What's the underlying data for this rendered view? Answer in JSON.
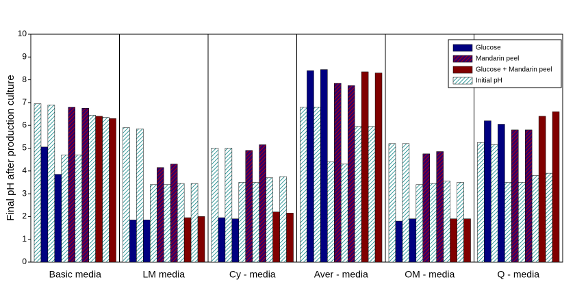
{
  "chart_data": {
    "type": "bar",
    "y_label": "Final pH after production culture",
    "categories": [
      "Basic media",
      "LM media",
      "Cy - media",
      "Aver - media",
      "OM - media",
      "Q - media"
    ],
    "bar_order": [
      "3.0",
      "0.0",
      "3.1",
      "0.1",
      "3.2",
      "1.0",
      "3.3",
      "1.1",
      "3.4",
      "2.0",
      "3.5",
      "2.1"
    ],
    "series": [
      {
        "name": "Glucose",
        "color": "#000080",
        "hatch": false,
        "values": [
          [
            5.05,
            3.85
          ],
          [
            1.85,
            1.85
          ],
          [
            1.95,
            1.9
          ],
          [
            8.4,
            8.45
          ],
          [
            1.8,
            1.9
          ],
          [
            6.2,
            6.05
          ]
        ]
      },
      {
        "name": "Mandarin peel",
        "color": "#330066",
        "hatch": true,
        "hatch_color": "#cc0000",
        "values": [
          [
            6.8,
            6.75
          ],
          [
            4.15,
            4.3
          ],
          [
            4.9,
            5.15
          ],
          [
            7.85,
            7.75
          ],
          [
            4.75,
            4.85
          ],
          [
            5.8,
            5.8
          ]
        ]
      },
      {
        "name": "Glucose + Mandarin peel",
        "color": "#800000",
        "hatch": false,
        "values": [
          [
            6.4,
            6.3
          ],
          [
            1.95,
            2.0
          ],
          [
            2.2,
            2.15
          ],
          [
            8.35,
            8.3
          ],
          [
            1.9,
            1.9
          ],
          [
            6.4,
            6.6
          ]
        ]
      },
      {
        "name": "Initial pH",
        "color": "#ffffff",
        "hatch": true,
        "hatch_color": "#008080",
        "values": [
          [
            6.95,
            6.9,
            4.7,
            4.7,
            6.45,
            6.35
          ],
          [
            5.9,
            5.85,
            3.4,
            3.4,
            3.45,
            3.45
          ],
          [
            5.0,
            5.0,
            3.5,
            3.5,
            3.7,
            3.75
          ],
          [
            6.8,
            6.8,
            4.4,
            4.3,
            5.95,
            5.95
          ],
          [
            5.2,
            5.2,
            3.4,
            3.45,
            3.55,
            3.5
          ],
          [
            5.25,
            5.15,
            3.5,
            3.5,
            3.8,
            3.9
          ]
        ]
      }
    ],
    "ylim": [
      0,
      10
    ],
    "yticks": [
      0,
      1,
      2,
      3,
      4,
      5,
      6,
      7,
      8,
      9,
      10
    ],
    "grid": false,
    "legend": "top-right"
  }
}
